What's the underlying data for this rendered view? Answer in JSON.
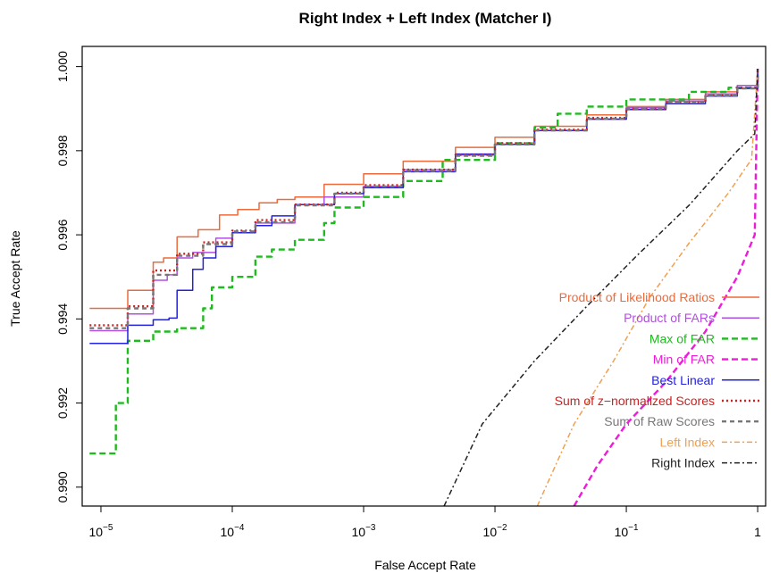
{
  "chart_data": {
    "type": "line",
    "title": "Right Index + Left Index (Matcher I)",
    "xlabel": "False Accept Rate",
    "ylabel": "True Accept Rate",
    "x_scale": "log",
    "xlim": [
      7.2e-06,
      1.15
    ],
    "ylim": [
      0.98955,
      1.00048
    ],
    "x_ticks": [
      {
        "value": 1e-05,
        "base": "10",
        "exp": "−5"
      },
      {
        "value": 0.0001,
        "base": "10",
        "exp": "−4"
      },
      {
        "value": 0.001,
        "base": "10",
        "exp": "−3"
      },
      {
        "value": 0.01,
        "base": "10",
        "exp": "−2"
      },
      {
        "value": 0.1,
        "base": "10",
        "exp": "−1"
      },
      {
        "value": 1,
        "base": "1",
        "exp": ""
      }
    ],
    "y_ticks": [
      {
        "value": 0.99,
        "label": "0.990"
      },
      {
        "value": 0.992,
        "label": "0.992"
      },
      {
        "value": 0.994,
        "label": "0.994"
      },
      {
        "value": 0.996,
        "label": "0.996"
      },
      {
        "value": 0.998,
        "label": "0.998"
      },
      {
        "value": 1.0,
        "label": "1.000"
      }
    ],
    "grid": false,
    "legend_position": "bottom-right",
    "series": [
      {
        "name": "Product of Likelihood Ratios",
        "color": "#ee6a3a",
        "dash": "solid",
        "style": "steps",
        "points": [
          [
            8.2e-06,
            0.99425
          ],
          [
            1.6e-05,
            0.99468
          ],
          [
            2.5e-05,
            0.99535
          ],
          [
            3e-05,
            0.99545
          ],
          [
            3.8e-05,
            0.99595
          ],
          [
            5.5e-05,
            0.99612
          ],
          [
            8e-05,
            0.99647
          ],
          [
            0.00011,
            0.9966
          ],
          [
            0.00016,
            0.99676
          ],
          [
            0.00022,
            0.99684
          ],
          [
            0.0003,
            0.9969
          ],
          [
            0.0005,
            0.9972
          ],
          [
            0.001,
            0.99745
          ],
          [
            0.002,
            0.99775
          ],
          [
            0.005,
            0.99808
          ],
          [
            0.01,
            0.99832
          ],
          [
            0.02,
            0.99858
          ],
          [
            0.05,
            0.99885
          ],
          [
            0.1,
            0.99905
          ],
          [
            0.2,
            0.99922
          ],
          [
            0.4,
            0.9994
          ],
          [
            0.7,
            0.99955
          ],
          [
            1,
            0.99995
          ]
        ]
      },
      {
        "name": "Product of FARs",
        "color": "#b24fe0",
        "dash": "solid",
        "style": "steps",
        "points": [
          [
            8.2e-06,
            0.99372
          ],
          [
            1.6e-05,
            0.99412
          ],
          [
            2.5e-05,
            0.99492
          ],
          [
            3.2e-05,
            0.99505
          ],
          [
            3.8e-05,
            0.99545
          ],
          [
            5e-05,
            0.99558
          ],
          [
            7.5e-05,
            0.99592
          ],
          [
            0.0001,
            0.99605
          ],
          [
            0.00015,
            0.99628
          ],
          [
            0.0003,
            0.99672
          ],
          [
            0.0005,
            0.9969
          ],
          [
            0.001,
            0.99715
          ],
          [
            0.002,
            0.99755
          ],
          [
            0.005,
            0.9979
          ],
          [
            0.01,
            0.99815
          ],
          [
            0.02,
            0.99848
          ],
          [
            0.05,
            0.99875
          ],
          [
            0.1,
            0.99902
          ],
          [
            0.2,
            0.99918
          ],
          [
            0.4,
            0.99935
          ],
          [
            0.7,
            0.99955
          ],
          [
            1,
            0.9999
          ]
        ]
      },
      {
        "name": "Max of FAR",
        "color": "#1dbb1d",
        "dash": "7,4",
        "style": "steps",
        "points": [
          [
            8.2e-06,
            0.9908
          ],
          [
            1.3e-05,
            0.992
          ],
          [
            1.6e-05,
            0.99348
          ],
          [
            2.5e-05,
            0.9937
          ],
          [
            3.8e-05,
            0.99378
          ],
          [
            6e-05,
            0.99425
          ],
          [
            7e-05,
            0.99475
          ],
          [
            0.0001,
            0.995
          ],
          [
            0.00015,
            0.99548
          ],
          [
            0.0002,
            0.99565
          ],
          [
            0.0003,
            0.99588
          ],
          [
            0.0005,
            0.99628
          ],
          [
            0.0006,
            0.99665
          ],
          [
            0.001,
            0.9969
          ],
          [
            0.002,
            0.99728
          ],
          [
            0.004,
            0.99778
          ],
          [
            0.01,
            0.99818
          ],
          [
            0.02,
            0.99855
          ],
          [
            0.03,
            0.99888
          ],
          [
            0.05,
            0.99905
          ],
          [
            0.1,
            0.99922
          ],
          [
            0.3,
            0.9994
          ],
          [
            0.6,
            0.9995
          ],
          [
            1,
            0.99995
          ]
        ]
      },
      {
        "name": "Min of FAR",
        "color": "#ee1cd8",
        "dash": "7,4",
        "style": "line",
        "points": [
          [
            0.04,
            0.98955
          ],
          [
            0.06,
            0.9905
          ],
          [
            0.1,
            0.9915
          ],
          [
            0.2,
            0.9925
          ],
          [
            0.4,
            0.9937
          ],
          [
            0.7,
            0.995
          ],
          [
            0.95,
            0.996
          ],
          [
            1,
            0.99995
          ]
        ]
      },
      {
        "name": "Best Linear",
        "color": "#2222dd",
        "dash": "solid",
        "style": "steps",
        "points": [
          [
            8.2e-06,
            0.99342
          ],
          [
            1.6e-05,
            0.99385
          ],
          [
            2.5e-05,
            0.99398
          ],
          [
            3.3e-05,
            0.99402
          ],
          [
            3.8e-05,
            0.99468
          ],
          [
            5e-05,
            0.99518
          ],
          [
            6e-05,
            0.99545
          ],
          [
            7.5e-05,
            0.99572
          ],
          [
            0.0001,
            0.99605
          ],
          [
            0.00015,
            0.99622
          ],
          [
            0.0002,
            0.99645
          ],
          [
            0.0003,
            0.99672
          ],
          [
            0.0006,
            0.99698
          ],
          [
            0.001,
            0.99712
          ],
          [
            0.002,
            0.9975
          ],
          [
            0.005,
            0.99792
          ],
          [
            0.01,
            0.99815
          ],
          [
            0.02,
            0.99848
          ],
          [
            0.05,
            0.99875
          ],
          [
            0.1,
            0.99898
          ],
          [
            0.2,
            0.99912
          ],
          [
            0.4,
            0.9993
          ],
          [
            0.7,
            0.99948
          ],
          [
            1,
            0.9999
          ]
        ]
      },
      {
        "name": "Sum of z−normalized Scores",
        "color": "#cc2222",
        "dash": "2,3",
        "style": "steps",
        "points": [
          [
            8.2e-06,
            0.99385
          ],
          [
            1.6e-05,
            0.9943
          ],
          [
            2.5e-05,
            0.99515
          ],
          [
            3.8e-05,
            0.99555
          ],
          [
            6e-05,
            0.99582
          ],
          [
            0.0001,
            0.9961
          ],
          [
            0.00015,
            0.99635
          ],
          [
            0.0003,
            0.99672
          ],
          [
            0.0006,
            0.997
          ],
          [
            0.001,
            0.99718
          ],
          [
            0.002,
            0.99755
          ],
          [
            0.005,
            0.9979
          ],
          [
            0.01,
            0.99818
          ],
          [
            0.02,
            0.9985
          ],
          [
            0.05,
            0.99878
          ],
          [
            0.1,
            0.999
          ],
          [
            0.2,
            0.99915
          ],
          [
            0.4,
            0.99932
          ],
          [
            0.7,
            0.9995
          ],
          [
            1,
            0.99992
          ]
        ]
      },
      {
        "name": "Sum of Raw Scores",
        "color": "#777777",
        "dash": "5,4",
        "style": "steps",
        "points": [
          [
            8.2e-06,
            0.99378
          ],
          [
            1.6e-05,
            0.99425
          ],
          [
            2.5e-05,
            0.99505
          ],
          [
            3.8e-05,
            0.9955
          ],
          [
            6e-05,
            0.99578
          ],
          [
            0.0001,
            0.99608
          ],
          [
            0.00015,
            0.9963
          ],
          [
            0.0003,
            0.9967
          ],
          [
            0.0006,
            0.99698
          ],
          [
            0.001,
            0.99715
          ],
          [
            0.002,
            0.99752
          ],
          [
            0.005,
            0.99788
          ],
          [
            0.01,
            0.99815
          ],
          [
            0.02,
            0.99848
          ],
          [
            0.05,
            0.99876
          ],
          [
            0.1,
            0.999
          ],
          [
            0.2,
            0.99915
          ],
          [
            0.4,
            0.99932
          ],
          [
            0.7,
            0.99948
          ],
          [
            1,
            0.9999
          ]
        ]
      },
      {
        "name": "Left Index",
        "color": "#f0a050",
        "dash": "6,3,2,3",
        "style": "line",
        "points": [
          [
            0.021,
            0.98955
          ],
          [
            0.04,
            0.9915
          ],
          [
            0.08,
            0.993
          ],
          [
            0.15,
            0.9945
          ],
          [
            0.3,
            0.9958
          ],
          [
            0.6,
            0.997
          ],
          [
            0.9,
            0.9978
          ],
          [
            1,
            0.99995
          ]
        ]
      },
      {
        "name": "Right Index",
        "color": "#222222",
        "dash": "6,3,2,3",
        "style": "line",
        "points": [
          [
            0.0041,
            0.98955
          ],
          [
            0.008,
            0.9915
          ],
          [
            0.02,
            0.993
          ],
          [
            0.05,
            0.9943
          ],
          [
            0.12,
            0.9955
          ],
          [
            0.3,
            0.9967
          ],
          [
            0.7,
            0.998
          ],
          [
            0.95,
            0.9984
          ],
          [
            1,
            0.99995
          ]
        ]
      }
    ]
  }
}
